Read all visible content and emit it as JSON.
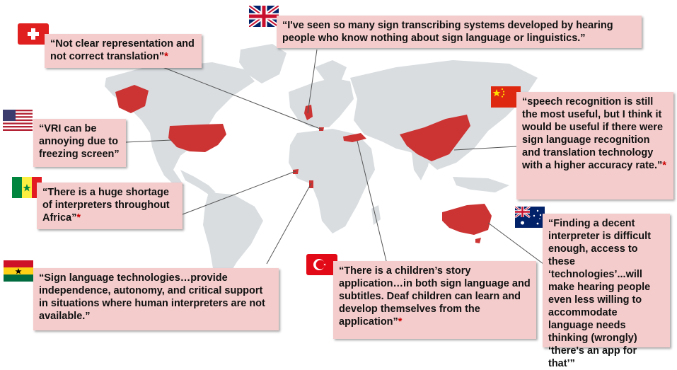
{
  "quotes": {
    "uk": {
      "text": "“I've seen so many sign transcribing systems developed by hearing people who know nothing about sign language or linguistics.”",
      "star": ""
    },
    "switzerland": {
      "text": "“Not clear representation and not correct translation”",
      "star": "*"
    },
    "usa": {
      "text": "“VRI can be annoying due to freezing screen”",
      "star": ""
    },
    "senegal": {
      "text": "“There is a huge shortage of interpreters throughout Africa”",
      "star": "*"
    },
    "ghana": {
      "text": "“Sign language technologies…provide independence, autonomy, and critical support in situations where human interpreters are not available.”",
      "star": ""
    },
    "china": {
      "text": "“speech recognition is still the most useful, but I think it would be useful if there were sign language recognition and translation technology with a higher accuracy rate.”",
      "star": "*"
    },
    "turkey": {
      "text": "“There is a children’s story application…in both sign language and subtitles. Deaf children can learn and develop themselves from the application”",
      "star": "*"
    },
    "australia": {
      "text": "“Finding a decent interpreter is difficult enough, access to these ‘technologies’...will make hearing people even less willing to accommodate language needs thinking (wrongly) ‘there's an app for that’”",
      "star": ""
    }
  },
  "flags": [
    "uk-flag-icon",
    "switzerland-flag-icon",
    "usa-flag-icon",
    "senegal-flag-icon",
    "ghana-flag-icon",
    "china-flag-icon",
    "turkey-flag-icon",
    "australia-flag-icon"
  ],
  "colors": {
    "land": "#d9dde0",
    "highlight": "#cc3333",
    "quote_bg": "#f4cccc",
    "asterisk": "#cc0000"
  }
}
